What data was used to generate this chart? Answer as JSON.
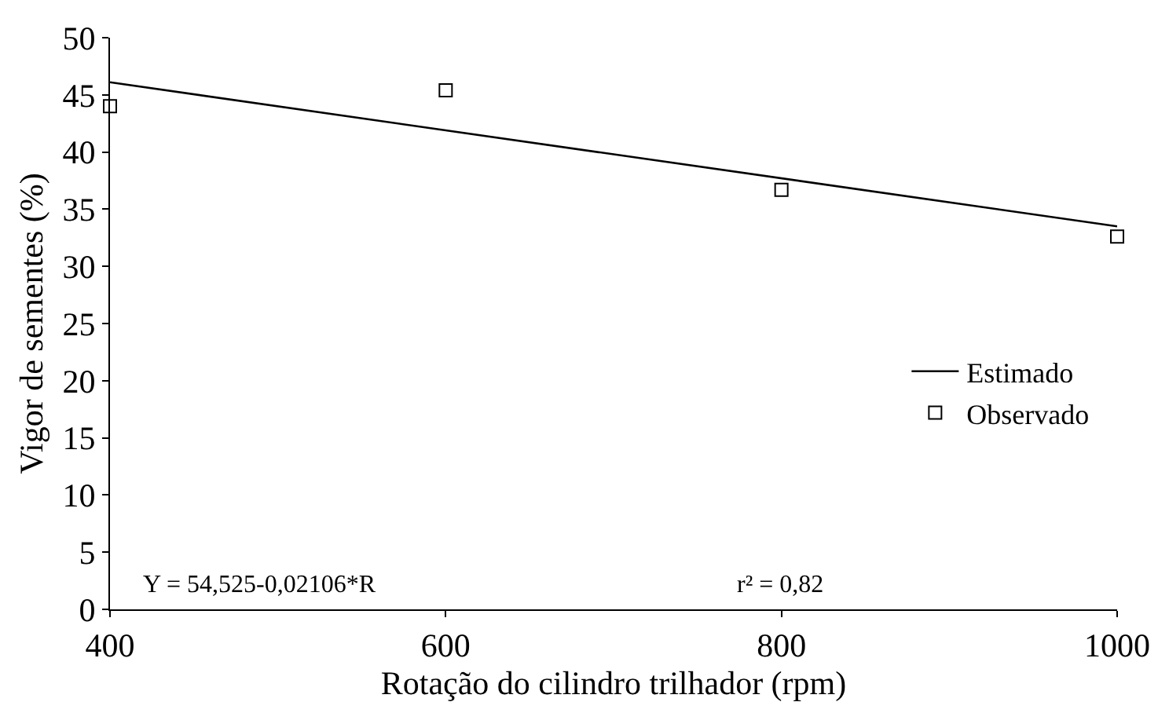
{
  "chart_data": {
    "type": "scatter",
    "xlabel": "Rotação do cilindro trilhador (rpm)",
    "ylabel": "Vigor de sementes (%)",
    "xlim": [
      400,
      1000
    ],
    "xticks": [
      400,
      600,
      800,
      1000
    ],
    "ylim": [
      0,
      50
    ],
    "yticks": [
      0,
      5,
      10,
      15,
      20,
      25,
      30,
      35,
      40,
      45,
      50
    ],
    "series": [
      {
        "name": "Estimado",
        "type": "line",
        "color": "#000000",
        "x": [
          400,
          1000
        ],
        "values": [
          46.1,
          33.5
        ]
      },
      {
        "name": "Observado",
        "color": "#000000",
        "marker": "square",
        "x": [
          400,
          600,
          800,
          1000
        ],
        "values": [
          44,
          45.4,
          36.7,
          32.6
        ]
      }
    ],
    "grid": false,
    "legend": "right",
    "annotations": [
      "Y = 54,525-0,02106*R",
      "r² = 0,82"
    ]
  }
}
